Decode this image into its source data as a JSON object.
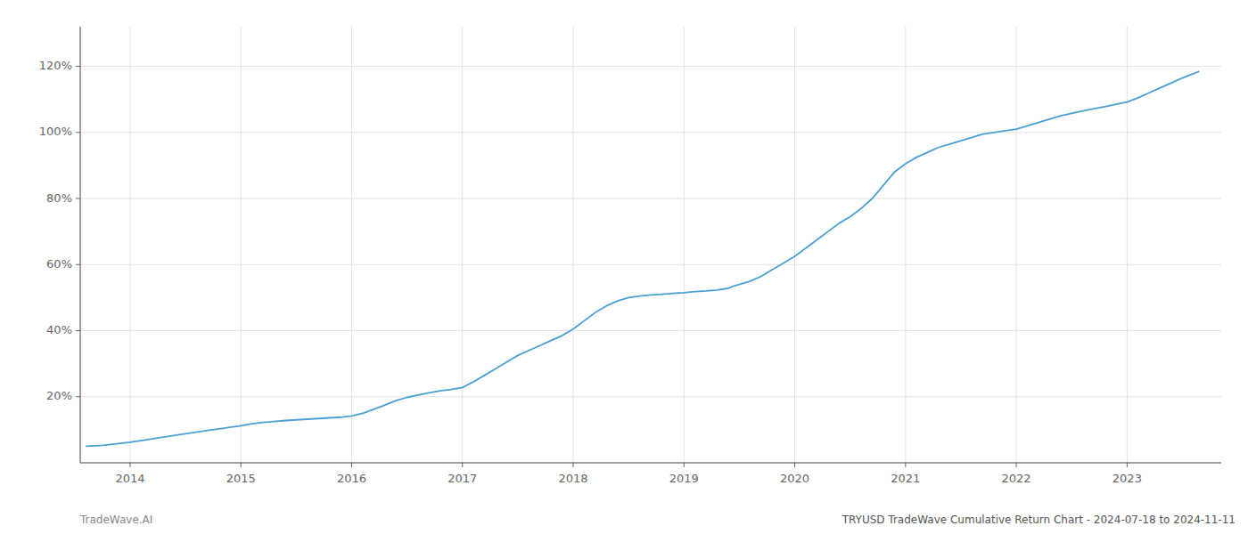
{
  "chart_data": {
    "type": "line",
    "title": "TRYUSD TradeWave Cumulative Return Chart - 2024-07-18 to 2024-11-11",
    "annotations": [
      "TradeWave.AI"
    ],
    "color": "#4a9fd4",
    "grid": true,
    "x": [
      2013.6,
      2013.75,
      2013.9,
      2014.0,
      2014.15,
      2014.3,
      2014.5,
      2014.7,
      2014.85,
      2015.0,
      2015.1,
      2015.2,
      2015.3,
      2015.4,
      2015.5,
      2015.6,
      2015.7,
      2015.8,
      2015.9,
      2016.0,
      2016.1,
      2016.2,
      2016.3,
      2016.4,
      2016.5,
      2016.6,
      2016.7,
      2016.8,
      2016.9,
      2017.0,
      2017.1,
      2017.2,
      2017.3,
      2017.4,
      2017.5,
      2017.6,
      2017.7,
      2017.8,
      2017.9,
      2018.0,
      2018.1,
      2018.2,
      2018.3,
      2018.4,
      2018.5,
      2018.6,
      2018.7,
      2018.8,
      2018.9,
      2019.0,
      2019.1,
      2019.2,
      2019.3,
      2019.4,
      2019.45,
      2019.5,
      2019.6,
      2019.7,
      2019.8,
      2019.9,
      2020.0,
      2020.1,
      2020.2,
      2020.3,
      2020.4,
      2020.5,
      2020.6,
      2020.7,
      2020.75,
      2020.85,
      2020.9,
      2021.0,
      2021.1,
      2021.2,
      2021.3,
      2021.4,
      2021.5,
      2021.6,
      2021.7,
      2021.8,
      2021.9,
      2022.0,
      2022.1,
      2022.2,
      2022.3,
      2022.4,
      2022.5,
      2022.6,
      2022.7,
      2022.8,
      2022.9,
      2023.0,
      2023.1,
      2023.2,
      2023.3,
      2023.4,
      2023.5,
      2023.6,
      2023.65
    ],
    "values": [
      5.0,
      5.3,
      5.8,
      6.2,
      7.0,
      7.8,
      8.8,
      9.8,
      10.5,
      11.2,
      11.8,
      12.2,
      12.5,
      12.8,
      13.0,
      13.2,
      13.4,
      13.6,
      13.8,
      14.2,
      15.0,
      16.2,
      17.5,
      18.8,
      19.8,
      20.5,
      21.2,
      21.8,
      22.2,
      22.8,
      24.5,
      26.5,
      28.5,
      30.5,
      32.5,
      34.0,
      35.5,
      37.0,
      38.5,
      40.5,
      43.0,
      45.5,
      47.5,
      49.0,
      50.0,
      50.5,
      50.8,
      51.0,
      51.3,
      51.5,
      51.8,
      52.0,
      52.3,
      52.8,
      53.5,
      54.0,
      55.0,
      56.5,
      58.5,
      60.5,
      62.5,
      65.0,
      67.5,
      70.0,
      72.5,
      74.5,
      77.0,
      80.0,
      82.0,
      86.0,
      88.0,
      90.5,
      92.5,
      94.0,
      95.5,
      96.5,
      97.5,
      98.5,
      99.5,
      100.0,
      100.5,
      101.0,
      102.0,
      103.0,
      104.0,
      105.0,
      105.8,
      106.5,
      107.2,
      107.8,
      108.5,
      109.2,
      110.5,
      112.0,
      113.5,
      115.0,
      116.5,
      117.8,
      118.5
    ],
    "xlim": [
      2013.55,
      2023.85
    ],
    "xticks": [
      2014,
      2015,
      2016,
      2017,
      2018,
      2019,
      2020,
      2021,
      2022,
      2023
    ],
    "ylim": [
      0,
      132
    ],
    "yticks": [
      {
        "value": 20,
        "label": "20%"
      },
      {
        "value": 40,
        "label": "40%"
      },
      {
        "value": 60,
        "label": "60%"
      },
      {
        "value": 80,
        "label": "80%"
      },
      {
        "value": 100,
        "label": "100%"
      },
      {
        "value": 120,
        "label": "120%"
      }
    ]
  }
}
